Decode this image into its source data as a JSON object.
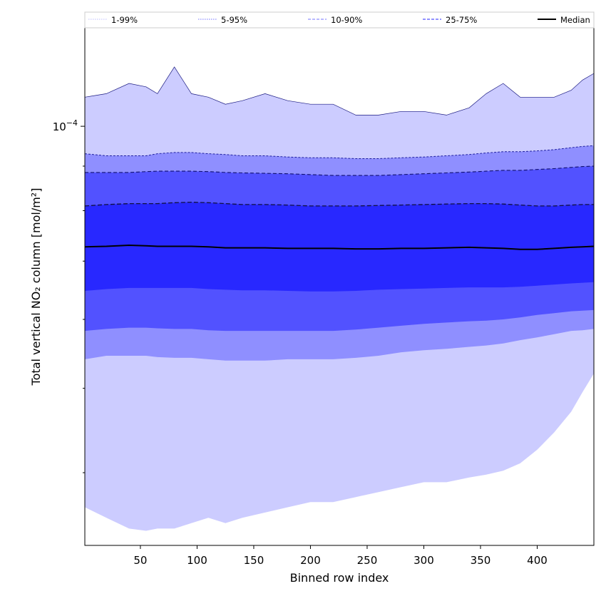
{
  "chart_data": {
    "type": "area",
    "xlabel": "Binned row index",
    "ylabel": "Total vertical NO₂ column [mol/m²]",
    "xlim": [
      1,
      450
    ],
    "ylim": [
      3.3e-05,
      0.00013
    ],
    "yscale": "log",
    "xticks": [
      50,
      100,
      150,
      200,
      250,
      300,
      350,
      400
    ],
    "yticks": [
      {
        "value": 0.0001,
        "base": "10",
        "exp": "−4"
      }
    ],
    "legend_position": "top, horizontal, above plot",
    "colors": {
      "band_1_99": "#ccccff",
      "band_5_95": "#8f8fff",
      "band_10_90": "#5252ff",
      "band_25_75": "#2828ff",
      "line_5_95": "#2020a0",
      "line_10_90": "#101070",
      "line_25_75": "#101040",
      "median": "#000000"
    },
    "legend": [
      {
        "label": "1-99%",
        "style": "dotted",
        "color": "#ccccff"
      },
      {
        "label": "5-95%",
        "style": "dotted",
        "color": "#8f8fff"
      },
      {
        "label": "10-90%",
        "style": "dashed",
        "color": "#8f8fff"
      },
      {
        "label": "25-75%",
        "style": "dashed",
        "color": "#5252ff"
      },
      {
        "label": "Median",
        "style": "solid",
        "color": "#000000"
      }
    ],
    "x": [
      1,
      20,
      40,
      55,
      65,
      80,
      95,
      110,
      125,
      140,
      160,
      180,
      200,
      220,
      240,
      260,
      280,
      300,
      320,
      340,
      355,
      370,
      385,
      400,
      415,
      430,
      440,
      450
    ],
    "series": [
      {
        "name": "1-99%",
        "role": "upper",
        "values": [
          0.000108,
          0.000109,
          0.000112,
          0.000111,
          0.000109,
          0.000117,
          0.000109,
          0.000108,
          0.000106,
          0.000107,
          0.000109,
          0.000107,
          0.000106,
          0.000106,
          0.000103,
          0.000103,
          0.000104,
          0.000104,
          0.000103,
          0.000105,
          0.000109,
          0.000112,
          0.000108,
          0.000108,
          0.000108,
          0.00011,
          0.000113,
          0.000115
        ]
      },
      {
        "name": "1-99%",
        "role": "lower",
        "values": [
          3.65e-05,
          3.55e-05,
          3.45e-05,
          3.43e-05,
          3.45e-05,
          3.45e-05,
          3.5e-05,
          3.55e-05,
          3.5e-05,
          3.55e-05,
          3.6e-05,
          3.65e-05,
          3.7e-05,
          3.7e-05,
          3.75e-05,
          3.8e-05,
          3.85e-05,
          3.9e-05,
          3.9e-05,
          3.95e-05,
          3.98e-05,
          4.02e-05,
          4.1e-05,
          4.25e-05,
          4.45e-05,
          4.7e-05,
          4.95e-05,
          5.2e-05
        ]
      },
      {
        "name": "5-95%",
        "role": "upper",
        "values": [
          9.3e-05,
          9.25e-05,
          9.25e-05,
          9.25e-05,
          9.3e-05,
          9.33e-05,
          9.33e-05,
          9.3e-05,
          9.28e-05,
          9.25e-05,
          9.25e-05,
          9.22e-05,
          9.2e-05,
          9.2e-05,
          9.18e-05,
          9.18e-05,
          9.2e-05,
          9.22e-05,
          9.25e-05,
          9.28e-05,
          9.32e-05,
          9.35e-05,
          9.35e-05,
          9.37e-05,
          9.4e-05,
          9.45e-05,
          9.48e-05,
          9.5e-05
        ]
      },
      {
        "name": "5-95%",
        "role": "lower",
        "values": [
          5.4e-05,
          5.45e-05,
          5.45e-05,
          5.45e-05,
          5.43e-05,
          5.42e-05,
          5.42e-05,
          5.4e-05,
          5.38e-05,
          5.38e-05,
          5.38e-05,
          5.4e-05,
          5.4e-05,
          5.4e-05,
          5.42e-05,
          5.45e-05,
          5.5e-05,
          5.53e-05,
          5.55e-05,
          5.58e-05,
          5.6e-05,
          5.63e-05,
          5.68e-05,
          5.72e-05,
          5.77e-05,
          5.82e-05,
          5.83e-05,
          5.85e-05
        ]
      },
      {
        "name": "10-90%",
        "role": "upper",
        "values": [
          8.85e-05,
          8.85e-05,
          8.85e-05,
          8.87e-05,
          8.88e-05,
          8.88e-05,
          8.88e-05,
          8.87e-05,
          8.85e-05,
          8.84e-05,
          8.83e-05,
          8.82e-05,
          8.8e-05,
          8.78e-05,
          8.78e-05,
          8.78e-05,
          8.8e-05,
          8.82e-05,
          8.84e-05,
          8.86e-05,
          8.88e-05,
          8.9e-05,
          8.9e-05,
          8.92e-05,
          8.94e-05,
          8.97e-05,
          8.99e-05,
          9e-05
        ]
      },
      {
        "name": "10-90%",
        "role": "lower",
        "values": [
          5.82e-05,
          5.85e-05,
          5.87e-05,
          5.87e-05,
          5.86e-05,
          5.85e-05,
          5.85e-05,
          5.83e-05,
          5.82e-05,
          5.82e-05,
          5.82e-05,
          5.82e-05,
          5.82e-05,
          5.82e-05,
          5.84e-05,
          5.87e-05,
          5.9e-05,
          5.93e-05,
          5.95e-05,
          5.97e-05,
          5.98e-05,
          6e-05,
          6.03e-05,
          6.07e-05,
          6.1e-05,
          6.13e-05,
          6.14e-05,
          6.15e-05
        ]
      },
      {
        "name": "25-75%",
        "role": "upper",
        "values": [
          8.1e-05,
          8.13e-05,
          8.15e-05,
          8.15e-05,
          8.15e-05,
          8.17e-05,
          8.18e-05,
          8.17e-05,
          8.15e-05,
          8.13e-05,
          8.13e-05,
          8.12e-05,
          8.1e-05,
          8.1e-05,
          8.1e-05,
          8.11e-05,
          8.12e-05,
          8.13e-05,
          8.14e-05,
          8.15e-05,
          8.15e-05,
          8.14e-05,
          8.12e-05,
          8.1e-05,
          8.1e-05,
          8.12e-05,
          8.13e-05,
          8.13e-05
        ]
      },
      {
        "name": "25-75%",
        "role": "lower",
        "values": [
          6.47e-05,
          6.5e-05,
          6.52e-05,
          6.52e-05,
          6.52e-05,
          6.52e-05,
          6.52e-05,
          6.5e-05,
          6.49e-05,
          6.48e-05,
          6.48e-05,
          6.47e-05,
          6.46e-05,
          6.46e-05,
          6.47e-05,
          6.49e-05,
          6.5e-05,
          6.51e-05,
          6.52e-05,
          6.53e-05,
          6.53e-05,
          6.53e-05,
          6.54e-05,
          6.56e-05,
          6.58e-05,
          6.6e-05,
          6.61e-05,
          6.62e-05
        ]
      },
      {
        "name": "Median",
        "role": "line",
        "values": [
          7.27e-05,
          7.28e-05,
          7.3e-05,
          7.29e-05,
          7.28e-05,
          7.28e-05,
          7.28e-05,
          7.27e-05,
          7.25e-05,
          7.25e-05,
          7.25e-05,
          7.24e-05,
          7.24e-05,
          7.24e-05,
          7.23e-05,
          7.23e-05,
          7.24e-05,
          7.24e-05,
          7.25e-05,
          7.26e-05,
          7.25e-05,
          7.24e-05,
          7.22e-05,
          7.22e-05,
          7.24e-05,
          7.26e-05,
          7.27e-05,
          7.28e-05
        ]
      }
    ]
  }
}
